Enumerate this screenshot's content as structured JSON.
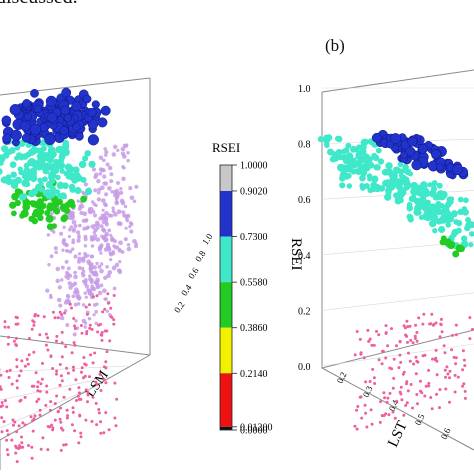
{
  "caption_fragment": "discussed.",
  "panel_b_label": "(b)",
  "colorbar": {
    "title": "RSEI",
    "levels": [
      {
        "label": "1.0000",
        "value": 1.0,
        "color": "#c8c8c8"
      },
      {
        "label": "0.9020",
        "value": 0.902,
        "color": "#2233cc"
      },
      {
        "label": "0.7300",
        "value": 0.73,
        "color": "#3fe8c8"
      },
      {
        "label": "0.5580",
        "value": 0.558,
        "color": "#22cc22"
      },
      {
        "label": "0.3860",
        "value": 0.386,
        "color": "#f2f200"
      },
      {
        "label": "0.2140",
        "value": 0.214,
        "color": "#ee1111"
      },
      {
        "label": "0.01200",
        "value": 0.012,
        "color": "#111111"
      },
      {
        "label": "0.0000",
        "value": 0.0,
        "color": "#111111"
      }
    ]
  },
  "colors": {
    "projection": "#ee5fa0",
    "panel_a_faint": "#c79be8"
  },
  "chart_data": [
    {
      "type": "scatter",
      "panel": "a",
      "xlabel": "LSM",
      "ylabel": "",
      "x_ticks": [
        "0.2",
        "0.4",
        "0.6",
        "0.8",
        "1.0"
      ],
      "series": [
        {
          "cluster": "purple",
          "color": "#c79be8",
          "points": [
            [
              0.62,
              0.34
            ],
            [
              0.7,
              0.4
            ],
            [
              0.78,
              0.46
            ],
            [
              0.5,
              0.3
            ],
            [
              0.85,
              0.52
            ],
            [
              0.58,
              0.26
            ],
            [
              0.9,
              0.5
            ],
            [
              0.66,
              0.22
            ],
            [
              0.74,
              0.3
            ],
            [
              0.8,
              0.36
            ]
          ]
        },
        {
          "cluster": "blue",
          "color": "#2233cc",
          "points": [
            [
              0.3,
              0.84
            ],
            [
              0.36,
              0.86
            ],
            [
              0.42,
              0.88
            ],
            [
              0.48,
              0.85
            ],
            [
              0.54,
              0.83
            ],
            [
              0.6,
              0.8
            ],
            [
              0.4,
              0.82
            ],
            [
              0.5,
              0.9
            ],
            [
              0.34,
              0.8
            ],
            [
              0.46,
              0.8
            ],
            [
              0.56,
              0.87
            ],
            [
              0.62,
              0.84
            ]
          ]
        },
        {
          "cluster": "cyan",
          "color": "#3fe8c8",
          "points": [
            [
              0.3,
              0.66
            ],
            [
              0.38,
              0.64
            ],
            [
              0.46,
              0.68
            ],
            [
              0.54,
              0.7
            ],
            [
              0.4,
              0.6
            ],
            [
              0.5,
              0.62
            ],
            [
              0.34,
              0.7
            ]
          ]
        },
        {
          "cluster": "green",
          "color": "#22cc22",
          "points": [
            [
              0.32,
              0.5
            ],
            [
              0.38,
              0.46
            ],
            [
              0.44,
              0.52
            ],
            [
              0.5,
              0.48
            ],
            [
              0.36,
              0.54
            ]
          ]
        }
      ]
    },
    {
      "type": "scatter",
      "panel": "b",
      "xlabel": "LST",
      "ylabel": "RSEI",
      "ylim": [
        0,
        1.0
      ],
      "yticks": [
        "0.0",
        "0.2",
        "0.4",
        "0.6",
        "0.8",
        "1.0"
      ],
      "x_ticks": [
        "0.2",
        "0.3",
        "0.4",
        "0.5",
        "0.6"
      ],
      "series": [
        {
          "cluster": "cyan",
          "color": "#3fe8c8",
          "points": [
            [
              0.2,
              0.8
            ],
            [
              0.25,
              0.76
            ],
            [
              0.3,
              0.74
            ],
            [
              0.35,
              0.7
            ],
            [
              0.4,
              0.68
            ],
            [
              0.45,
              0.66
            ],
            [
              0.5,
              0.62
            ],
            [
              0.55,
              0.58
            ],
            [
              0.6,
              0.54
            ],
            [
              0.32,
              0.78
            ],
            [
              0.42,
              0.72
            ],
            [
              0.52,
              0.66
            ],
            [
              0.28,
              0.7
            ],
            [
              0.48,
              0.6
            ],
            [
              0.58,
              0.62
            ]
          ]
        },
        {
          "cluster": "blue",
          "color": "#2233cc",
          "points": [
            [
              0.38,
              0.84
            ],
            [
              0.42,
              0.82
            ],
            [
              0.46,
              0.8
            ],
            [
              0.5,
              0.78
            ],
            [
              0.54,
              0.77
            ],
            [
              0.58,
              0.76
            ],
            [
              0.44,
              0.86
            ],
            [
              0.52,
              0.82
            ]
          ]
        },
        {
          "cluster": "green",
          "color": "#22cc22",
          "points": [
            [
              0.55,
              0.5
            ],
            [
              0.6,
              0.48
            ]
          ]
        }
      ]
    }
  ]
}
